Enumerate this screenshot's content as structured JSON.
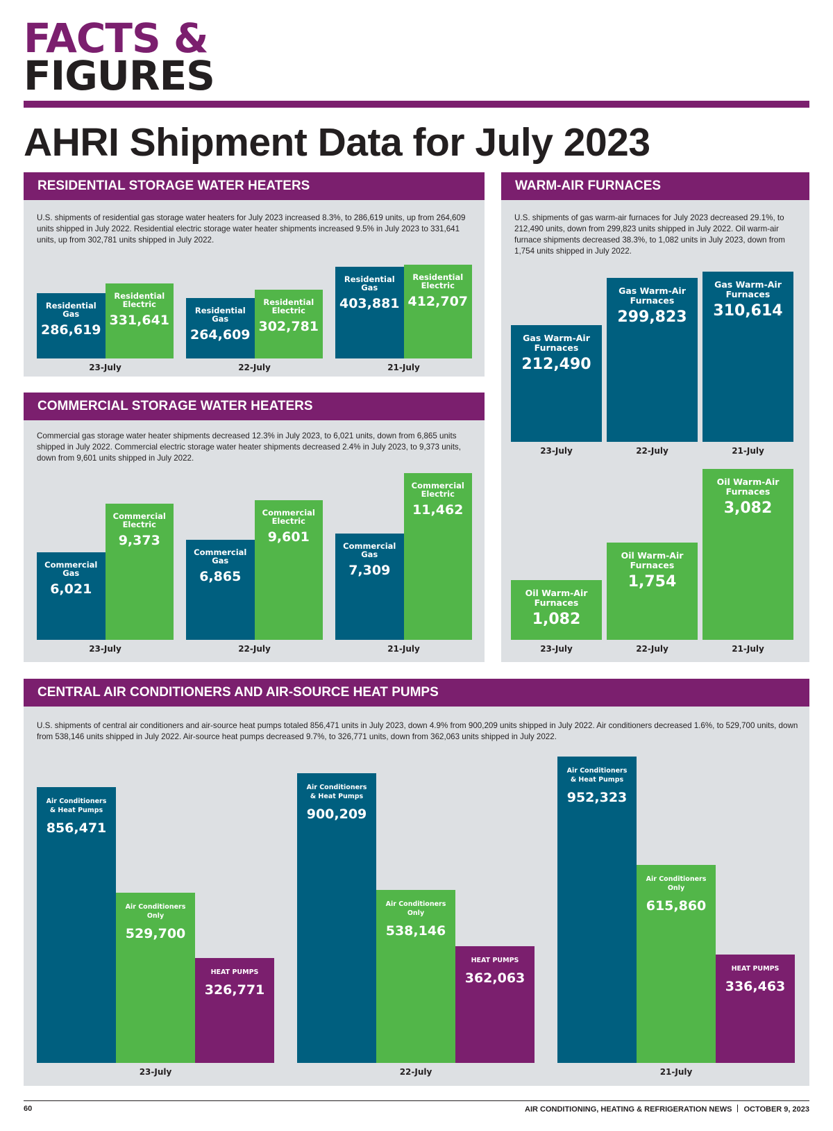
{
  "masthead": {
    "line1": "FACTS &",
    "line2": "FIGURES"
  },
  "page_title": "AHRI Shipment Data for July 2023",
  "colors": {
    "purple": "#7b1f6e",
    "teal": "#005f7f",
    "green": "#52b649",
    "panel": "#dde0e3"
  },
  "footer": {
    "page_number": "60",
    "publication": "AIR CONDITIONING, HEATING & REFRIGERATION NEWS",
    "date": "OCTOBER 9, 2023"
  },
  "panels": {
    "residential": {
      "title": "RESIDENTIAL STORAGE WATER HEATERS",
      "text": "U.S. shipments of residential gas storage water heaters for July 2023 increased 8.3%, to 286,619 units, up from 264,609 units shipped in July 2022. Residential electric storage water heater shipments increased 9.5% in July 2023 to 331,641 units, up from 302,781 units shipped in July 2022."
    },
    "commercial": {
      "title": "COMMERCIAL STORAGE WATER HEATERS",
      "text": "Commercial gas storage water heater shipments decreased 12.3% in July 2023, to 6,021 units, down from 6,865 units shipped in July 2022. Commercial electric storage water heater shipments decreased 2.4% in July 2023, to 9,373 units, down from 9,601 units shipped in July 2022."
    },
    "furnaces": {
      "title": "WARM-AIR FURNACES",
      "text": "U.S. shipments of gas warm-air furnaces for July 2023 decreased 29.1%, to 212,490 units, down from 299,823 units shipped in July 2022. Oil warm-air furnace shipments decreased 38.3%, to 1,082 units in July 2023, down from 1,754 units shipped in July 2022."
    },
    "ac": {
      "title": "CENTRAL AIR CONDITIONERS AND AIR-SOURCE HEAT PUMPS",
      "text": "U.S. shipments of central air conditioners and air-source heat pumps totaled 856,471 units in July 2023, down 4.9% from 900,209 units shipped in July 2022. Air conditioners decreased 1.6%, to 529,700 units, down from 538,146 units shipped in July 2022. Air-source heat pumps decreased 9.7%, to 326,771 units, down from 362,063 units shipped in July 2022."
    }
  },
  "chart_data": [
    {
      "id": "residential",
      "type": "bar",
      "title": "RESIDENTIAL STORAGE WATER HEATERS",
      "categories": [
        "23-July",
        "22-July",
        "21-July"
      ],
      "series": [
        {
          "name": "Residential Gas",
          "label_lines": [
            "Residential",
            "Gas"
          ],
          "color": "#005f7f",
          "values": [
            286619,
            264609,
            403881
          ],
          "display": [
            "286,619",
            "264,609",
            "403,881"
          ]
        },
        {
          "name": "Residential Electric",
          "label_lines": [
            "Residential",
            "Electric"
          ],
          "color": "#52b649",
          "values": [
            331641,
            302781,
            412707
          ],
          "display": [
            "331,641",
            "302,781",
            "412,707"
          ]
        }
      ],
      "xlabel": "",
      "ylabel": ""
    },
    {
      "id": "commercial",
      "type": "bar",
      "title": "COMMERCIAL STORAGE WATER HEATERS",
      "categories": [
        "23-July",
        "22-July",
        "21-July"
      ],
      "series": [
        {
          "name": "Commercial Gas",
          "label_lines": [
            "Commercial",
            "Gas"
          ],
          "color": "#005f7f",
          "values": [
            6021,
            6865,
            7309
          ],
          "display": [
            "6,021",
            "6,865",
            "7,309"
          ]
        },
        {
          "name": "Commercial Electric",
          "label_lines": [
            "Commercial",
            "Electric"
          ],
          "color": "#52b649",
          "values": [
            9373,
            9601,
            11462
          ],
          "display": [
            "9,373",
            "9,601",
            "11,462"
          ]
        }
      ],
      "xlabel": "",
      "ylabel": ""
    },
    {
      "id": "gas-furnaces",
      "type": "bar",
      "title": "WARM-AIR FURNACES — Gas",
      "categories": [
        "23-July",
        "22-July",
        "21-July"
      ],
      "series": [
        {
          "name": "Gas Warm-Air Furnaces",
          "label_lines": [
            "Gas Warm-Air",
            "Furnaces"
          ],
          "color": "#005f7f",
          "values": [
            212490,
            299823,
            310614
          ],
          "display": [
            "212,490",
            "299,823",
            "310,614"
          ]
        }
      ],
      "xlabel": "",
      "ylabel": ""
    },
    {
      "id": "oil-furnaces",
      "type": "bar",
      "title": "WARM-AIR FURNACES — Oil",
      "categories": [
        "23-July",
        "22-July",
        "21-July"
      ],
      "series": [
        {
          "name": "Oil Warm-Air Furnaces",
          "label_lines": [
            "Oil Warm-Air",
            "Furnaces"
          ],
          "color": "#52b649",
          "values": [
            1082,
            1754,
            3082
          ],
          "display": [
            "1,082",
            "1,754",
            "3,082"
          ]
        }
      ],
      "xlabel": "",
      "ylabel": ""
    },
    {
      "id": "ac",
      "type": "bar",
      "title": "CENTRAL AIR CONDITIONERS AND AIR-SOURCE HEAT PUMPS",
      "categories": [
        "23-July",
        "22-July",
        "21-July"
      ],
      "series": [
        {
          "name": "Air Conditioners & Heat Pumps",
          "label_lines": [
            "Air Conditioners",
            "& Heat Pumps"
          ],
          "color": "#005f7f",
          "values": [
            856471,
            900209,
            952323
          ],
          "display": [
            "856,471",
            "900,209",
            "952,323"
          ]
        },
        {
          "name": "Air Conditioners Only",
          "label_lines": [
            "Air Conditioners",
            "Only"
          ],
          "color": "#52b649",
          "values": [
            529700,
            538146,
            615860
          ],
          "display": [
            "529,700",
            "538,146",
            "615,860"
          ]
        },
        {
          "name": "Heat Pumps",
          "label_lines": [
            "HEAT PUMPS"
          ],
          "color": "#7b1f6e",
          "values": [
            326771,
            362063,
            336463
          ],
          "display": [
            "326,771",
            "362,063",
            "336,463"
          ]
        }
      ],
      "xlabel": "",
      "ylabel": ""
    }
  ]
}
